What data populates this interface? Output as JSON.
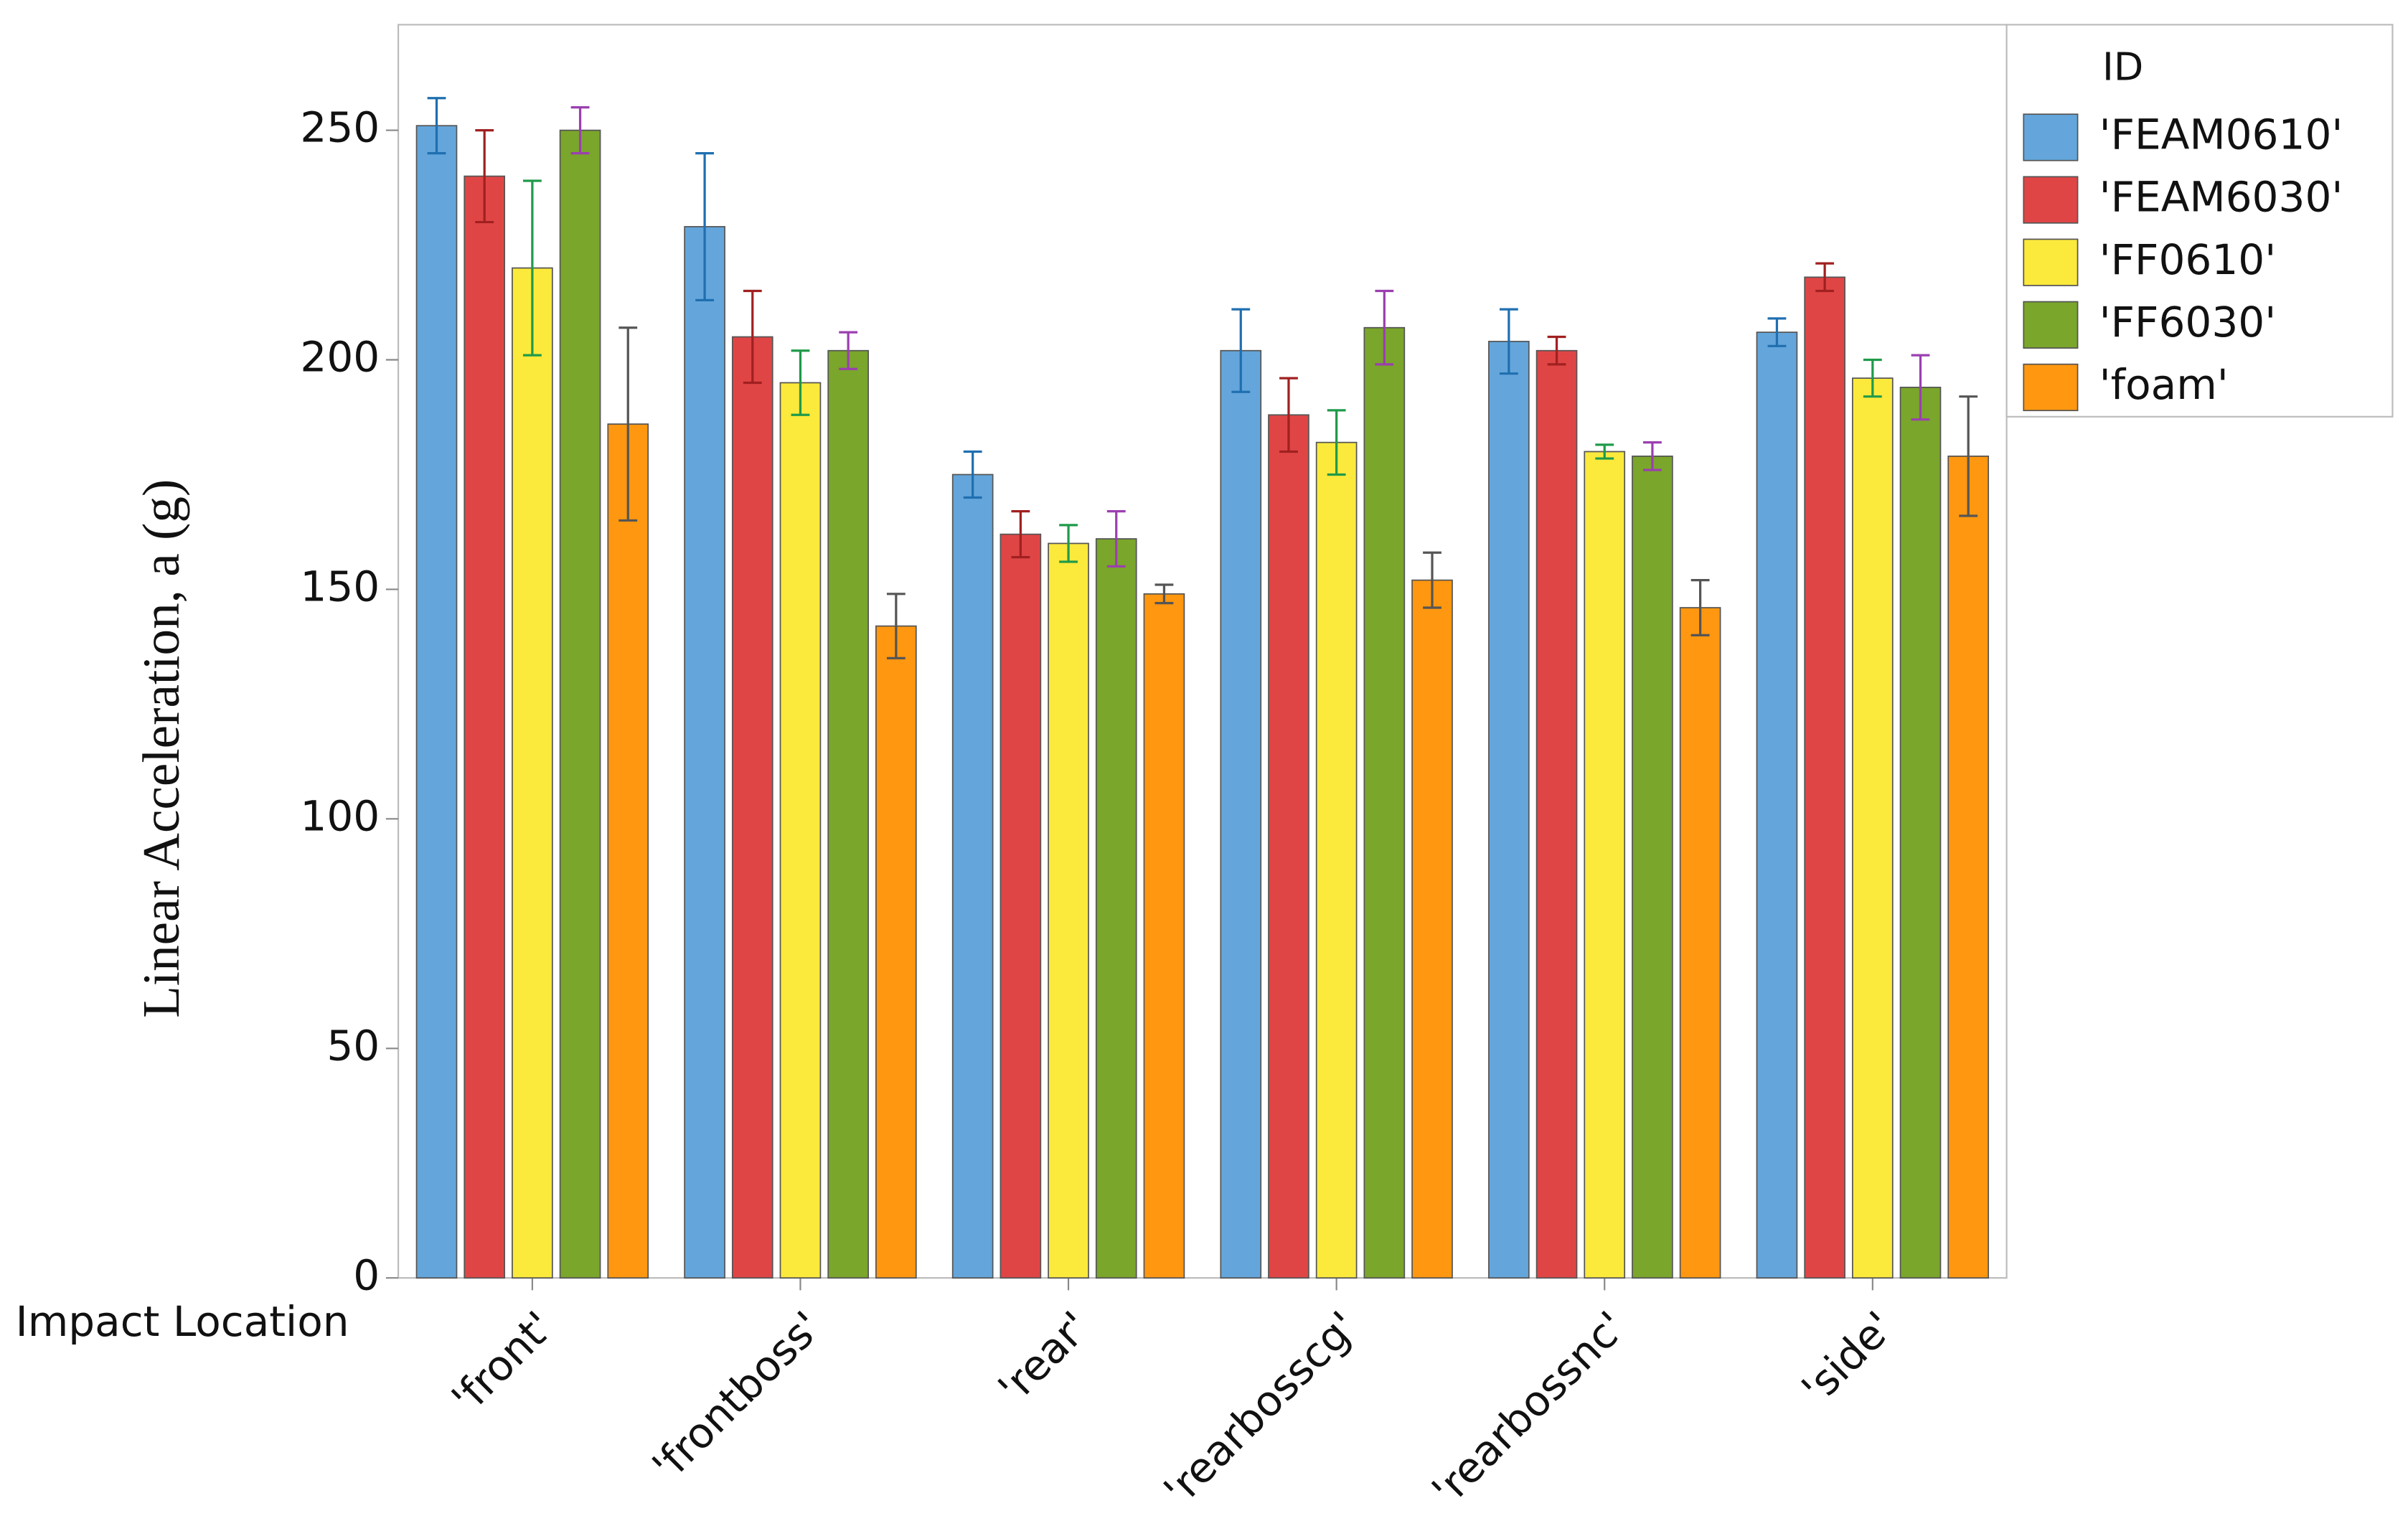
{
  "chart_data": {
    "type": "bar",
    "y_label": "Linear Acceleration, a (g)",
    "x_label": "Impact Location",
    "legend_title": "ID",
    "legend_position": "upper right outside",
    "categories": [
      "'front'",
      "'frontboss'",
      "'rear'",
      "'rearbosscg'",
      "'rearbossnc'",
      "'side'"
    ],
    "series": [
      {
        "name": "'FEAM0610'",
        "color": "#64a6db",
        "error_color": "#1f6fb0",
        "values": [
          251,
          229,
          175,
          202,
          204,
          206
        ],
        "errors": [
          6,
          16,
          5,
          9,
          7,
          3
        ]
      },
      {
        "name": "'FEAM6030'",
        "color": "#e04545",
        "error_color": "#a02020",
        "values": [
          240,
          205,
          162,
          188,
          202,
          218
        ],
        "errors": [
          10,
          10,
          5,
          8,
          3,
          3
        ]
      },
      {
        "name": "'FF0610'",
        "color": "#fbe93c",
        "error_color": "#1f9a4a",
        "values": [
          220,
          195,
          160,
          182,
          180,
          196
        ],
        "errors": [
          19,
          7,
          4,
          7,
          1.5,
          4
        ]
      },
      {
        "name": "'FF6030'",
        "color": "#7aa62b",
        "error_color": "#9b3fb0",
        "values": [
          250,
          202,
          161,
          207,
          179,
          194
        ],
        "errors": [
          5,
          4,
          6,
          8,
          3,
          7
        ]
      },
      {
        "name": "'foam'",
        "color": "#ff9710",
        "error_color": "#555555",
        "values": [
          186,
          142,
          149,
          152,
          146,
          179
        ],
        "errors": [
          21,
          7,
          2,
          6,
          6,
          13
        ]
      }
    ],
    "ylim": [
      0,
      273
    ],
    "yticks": [
      0,
      50,
      100,
      150,
      200,
      250
    ],
    "grid": false
  }
}
